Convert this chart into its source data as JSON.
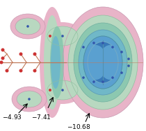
{
  "color_pink": "#e8b4c8",
  "color_green1": "#b8d8c0",
  "color_green2": "#8cc8b0",
  "color_teal": "#70b8c8",
  "color_blue1": "#5aa0d0",
  "color_blue2": "#3878b8",
  "color_dkblue": "#1a50a0",
  "color_bone": "#d8c8b8",
  "bg": "#ffffff",
  "stick_color": "#c07858",
  "atom_red": "#cc3333",
  "atom_blue": "#3355aa",
  "lw_contour": 0.5
}
